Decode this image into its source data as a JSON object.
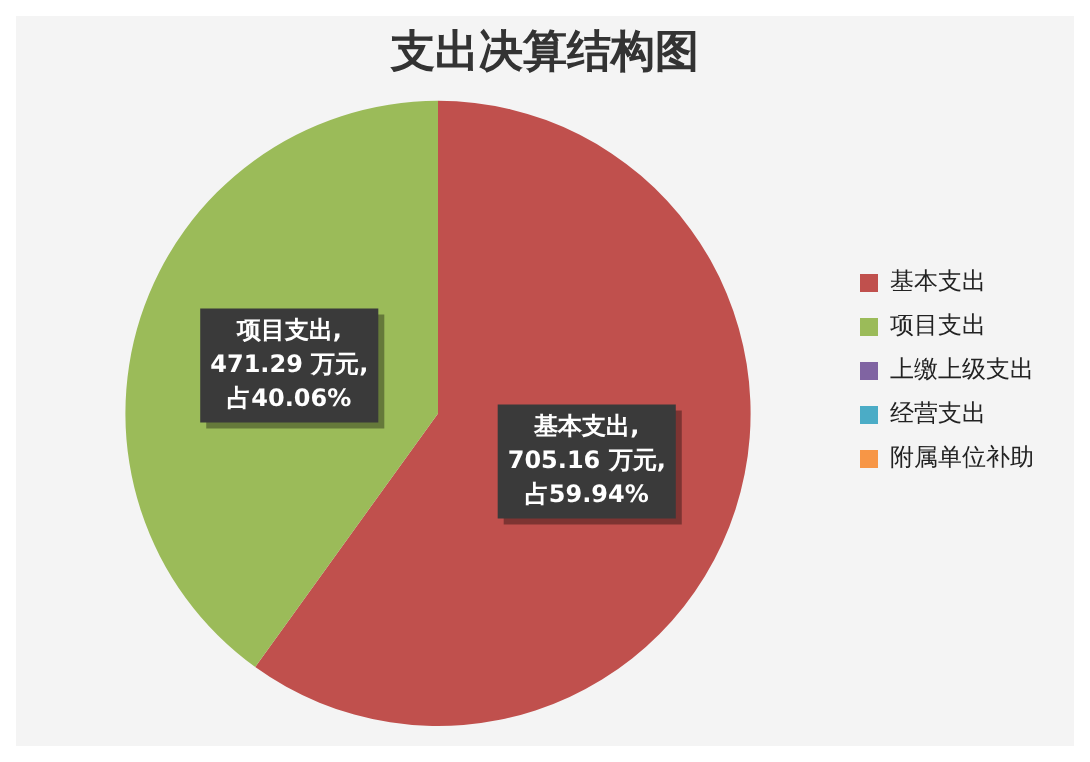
{
  "chart_data": {
    "type": "pie",
    "title": "支出决算结构图",
    "categories": [
      "基本支出",
      "项目支出",
      "上缴上级支出",
      "经营支出",
      "附属单位补助"
    ],
    "values": [
      705.16,
      471.29,
      0,
      0,
      0
    ],
    "colors": [
      "#c0504d",
      "#9bbb59",
      "#8064a2",
      "#4bacc6",
      "#f79646"
    ],
    "value_labels": [
      "基本支出, 705.16 万元, 占59.94%",
      "项目支出, 471.29 万元, 占40.06%",
      null,
      null,
      null
    ],
    "legend": "right"
  }
}
